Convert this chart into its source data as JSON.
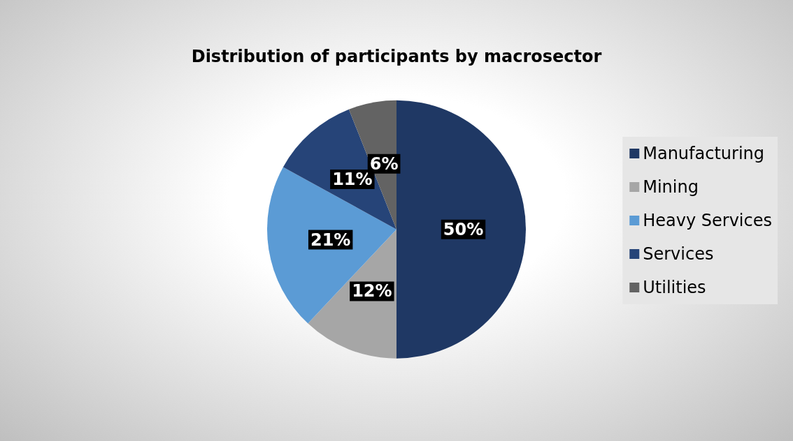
{
  "chart_data": {
    "type": "pie",
    "title": "Distribution of participants by macrosector",
    "categories": [
      "Manufacturing",
      "Mining",
      "Heavy Services",
      "Services",
      "Utilities"
    ],
    "values": [
      50,
      12,
      21,
      11,
      6
    ],
    "value_labels": [
      "50%",
      "12%",
      "21%",
      "11%",
      "6%"
    ],
    "colors": [
      "#1f3864",
      "#a6a6a6",
      "#5b9bd5",
      "#264478",
      "#636363"
    ],
    "legend": "right"
  }
}
